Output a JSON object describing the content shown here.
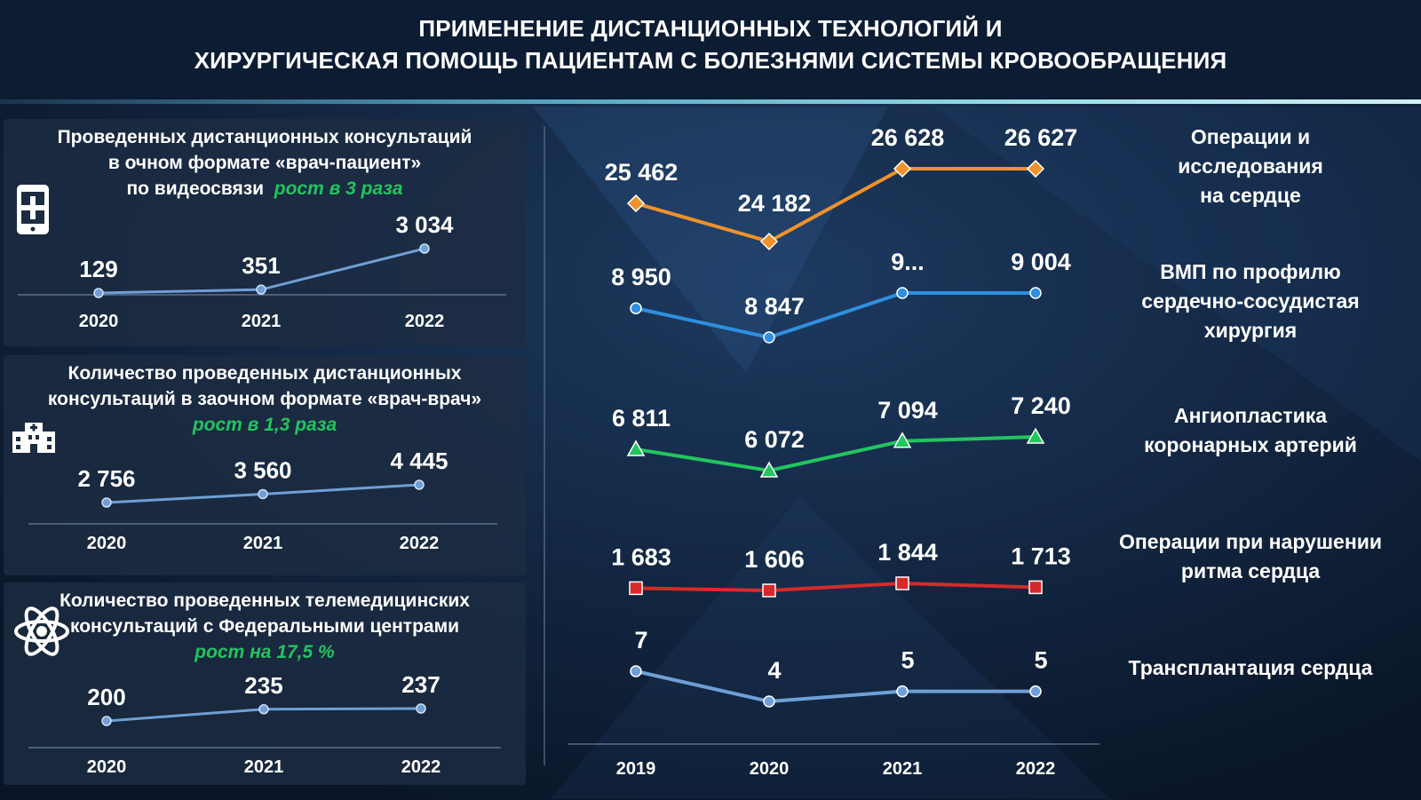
{
  "title": {
    "line1": "ПРИМЕНЕНИЕ ДИСТАНЦИОННЫХ ТЕХНОЛОГИЙ И",
    "line2": "ХИРУРГИЧЕСКАЯ ПОМОЩЬ ПАЦИЕНТАМ С БОЛЕЗНЯМИ СИСТЕМЫ КРОВООБРАЩЕНИЯ"
  },
  "panels": [
    {
      "title_lines": [
        "Проведенных дистанционных консультаций",
        "в очном формате «врач-пациент»",
        "по видеосвязи"
      ],
      "growth": "рост в 3 раза",
      "icon": "phone-medical-icon"
    },
    {
      "title_lines": [
        "Количество проведенных дистанционных",
        "консультаций в заочном формате «врач-врач»"
      ],
      "growth": "рост в 1,3 раза",
      "icon": "hospital-icon"
    },
    {
      "title_lines": [
        "Количество проведенных телемедицинских",
        "консультаций  с Федеральными центрами"
      ],
      "growth": "рост на 17,5 %",
      "icon": "atom-icon"
    }
  ],
  "colors": {
    "background": "#0b1a2e",
    "panel": "#1c2c42",
    "growth_text": "#22c55e",
    "orange": "#f0922b",
    "blue": "#2f8fe0",
    "green": "#22c55e",
    "red": "#d62a2a",
    "steel": "#6f9fd6"
  },
  "chart_data": [
    {
      "type": "line",
      "x": [
        "2020",
        "2021",
        "2022"
      ],
      "series": [
        {
          "values": [
            129,
            351,
            3034
          ],
          "labels": [
            "129",
            "351",
            "3 034"
          ]
        }
      ]
    },
    {
      "type": "line",
      "x": [
        "2020",
        "2021",
        "2022"
      ],
      "series": [
        {
          "values": [
            2756,
            3560,
            4445
          ],
          "labels": [
            "2 756",
            "3 560",
            "4 445"
          ]
        }
      ]
    },
    {
      "type": "line",
      "x": [
        "2020",
        "2021",
        "2022"
      ],
      "series": [
        {
          "values": [
            200,
            235,
            237
          ],
          "labels": [
            "200",
            "235",
            "237"
          ]
        }
      ]
    },
    {
      "type": "line",
      "x": [
        "2019",
        "2020",
        "2021",
        "2022"
      ],
      "series": [
        {
          "name": "Операции и исследования на сердце",
          "label_lines": [
            "Операции и",
            "исследования",
            "на сердце"
          ],
          "values": [
            25462,
            24182,
            26628,
            26627
          ],
          "labels": [
            "25 462",
            "24 182",
            "26 628",
            "26 627"
          ],
          "color": "#f0922b",
          "marker": "diamond"
        },
        {
          "name": "ВМП по профилю сердечно-сосудистая хирургия",
          "label_lines": [
            "ВМП по профилю",
            "сердечно-сосудистая",
            "хирургия"
          ],
          "values": [
            8950,
            8847,
            null,
            9004
          ],
          "labels": [
            "8 950",
            "8 847",
            "9...",
            "9 004"
          ],
          "color": "#2f8fe0",
          "marker": "circle"
        },
        {
          "name": "Ангиопластика коронарных артерий",
          "label_lines": [
            "Ангиопластика",
            "коронарных артерий"
          ],
          "values": [
            6811,
            6072,
            7094,
            7240
          ],
          "labels": [
            "6 811",
            "6 072",
            "7 094",
            "7 240"
          ],
          "color": "#22c55e",
          "marker": "triangle"
        },
        {
          "name": "Операции при нарушении ритма сердца",
          "label_lines": [
            "Операции при нарушении",
            "ритма сердца"
          ],
          "values": [
            1683,
            1606,
            1844,
            1713
          ],
          "labels": [
            "1 683",
            "1 606",
            "1 844",
            "1 713"
          ],
          "color": "#d62a2a",
          "marker": "square"
        },
        {
          "name": "Трансплантация сердца",
          "label_lines": [
            "Трансплантация сердца"
          ],
          "values": [
            7,
            4,
            5,
            5
          ],
          "labels": [
            "7",
            "4",
            "5",
            "5"
          ],
          "color": "#6f9fd6",
          "marker": "circle"
        }
      ]
    }
  ]
}
